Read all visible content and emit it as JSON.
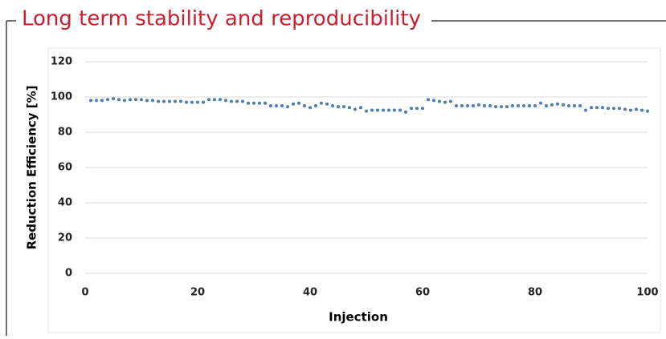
{
  "chart_data": {
    "type": "scatter",
    "title": "Long term stability and reproducibility",
    "xlabel": "Injection",
    "ylabel": "Reduction Efficiency [%]",
    "color": "#4a7eb5",
    "title_color": "#c8202f",
    "grid": true,
    "xlim": [
      0,
      100
    ],
    "xticks": [
      0,
      20,
      40,
      60,
      80,
      100
    ],
    "ylim": [
      0,
      120
    ],
    "yticks": [
      0,
      20,
      40,
      60,
      80,
      100,
      120
    ],
    "x": [
      1,
      2,
      3,
      4,
      5,
      6,
      7,
      8,
      9,
      10,
      11,
      12,
      13,
      14,
      15,
      16,
      17,
      18,
      19,
      20,
      21,
      22,
      23,
      24,
      25,
      26,
      27,
      28,
      29,
      30,
      31,
      32,
      33,
      34,
      35,
      36,
      37,
      38,
      39,
      40,
      41,
      42,
      43,
      44,
      45,
      46,
      47,
      48,
      49,
      50,
      51,
      52,
      53,
      54,
      55,
      56,
      57,
      58,
      59,
      60,
      61,
      62,
      63,
      64,
      65,
      66,
      67,
      68,
      69,
      70,
      71,
      72,
      73,
      74,
      75,
      76,
      77,
      78,
      79,
      80,
      81,
      82,
      83,
      84,
      85,
      86,
      87,
      88,
      89,
      90,
      91,
      92,
      93,
      94,
      95,
      96,
      97,
      98,
      99,
      100
    ],
    "values": [
      98,
      98,
      98,
      98.5,
      99,
      98.5,
      98,
      98.5,
      98.5,
      98.5,
      98,
      98,
      97.5,
      97.5,
      97.5,
      97.5,
      97.5,
      97,
      97,
      97,
      97,
      98.5,
      98.5,
      98.5,
      98,
      97.5,
      97.5,
      97.5,
      96.5,
      96.5,
      96.5,
      96.5,
      95,
      95,
      95,
      94.5,
      96,
      96.5,
      95,
      94,
      95,
      96.5,
      96,
      95,
      94.5,
      94.5,
      94,
      93,
      94,
      92,
      92.5,
      92.5,
      92.5,
      92.5,
      92.5,
      92.5,
      91.5,
      93.5,
      93.5,
      93.5,
      98.5,
      98,
      97.5,
      97,
      97.5,
      95,
      95,
      95,
      95,
      95.5,
      95,
      95,
      94.5,
      94.5,
      94.5,
      95,
      95,
      95,
      95,
      95,
      96.5,
      95,
      95.5,
      96,
      95.5,
      95,
      95,
      95,
      92.5,
      94,
      94,
      94,
      93.5,
      93.5,
      93.5,
      93,
      92.5,
      93,
      92.5,
      92
    ]
  }
}
